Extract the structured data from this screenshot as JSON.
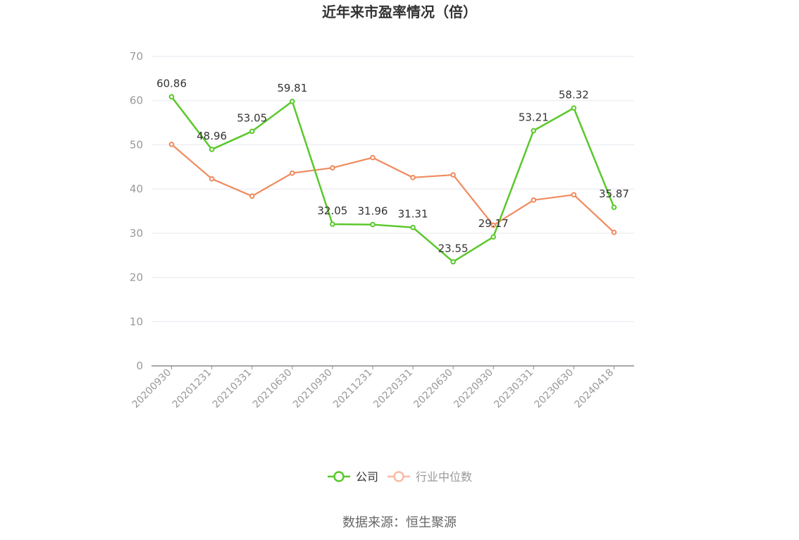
{
  "chart_data": {
    "type": "line",
    "title": "近年来市盈率情况（倍）",
    "categories": [
      "20200930",
      "20201231",
      "20210331",
      "20210630",
      "20210930",
      "20211231",
      "20220331",
      "20220630",
      "20220930",
      "20230331",
      "20230630",
      "20240418"
    ],
    "ylim": [
      0,
      70
    ],
    "yticks": [
      0,
      10,
      20,
      30,
      40,
      50,
      60,
      70
    ],
    "grid": true,
    "legend_position": "bottom",
    "series": [
      {
        "name": "公司",
        "color": "#5ac82b",
        "values": [
          60.86,
          48.96,
          53.05,
          59.81,
          32.05,
          31.96,
          31.31,
          23.55,
          29.17,
          53.21,
          58.32,
          35.87
        ],
        "labels": [
          "60.86",
          "48.96",
          "53.05",
          "59.81",
          "32.05",
          "31.96",
          "31.31",
          "23.55",
          "29.17",
          "53.21",
          "58.32",
          "35.87"
        ]
      },
      {
        "name": "行业中位数",
        "color": "#f08a5d",
        "values": [
          50.1,
          42.3,
          38.4,
          43.6,
          44.8,
          47.1,
          42.6,
          43.2,
          31.8,
          37.5,
          38.7,
          30.2
        ]
      }
    ]
  },
  "legend": {
    "items": [
      {
        "label": "公司",
        "color": "#5ac82b",
        "text_color": "#333333"
      },
      {
        "label": "行业中位数",
        "color": "#f8bba4",
        "text_color": "#999999"
      }
    ]
  },
  "source": "数据来源：恒生聚源"
}
